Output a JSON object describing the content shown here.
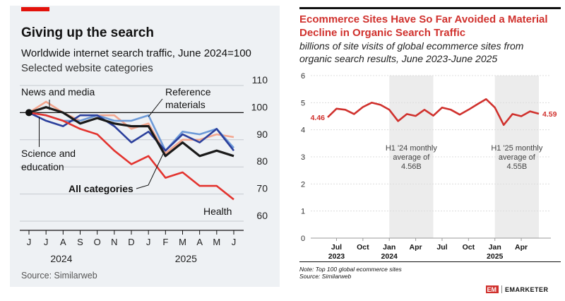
{
  "left": {
    "title": "Giving up the search",
    "subtitle": "Worldwide internet search traffic, June 2024=100",
    "subsubtitle": "Selected website categories",
    "source": "Source: Similarweb",
    "colors": {
      "all": "#1a1a1a",
      "news": "#f3a68f",
      "reference": "#6d9ad8",
      "science": "#2b3f9c",
      "health": "#e3342f",
      "accent": "#e3120b"
    }
  },
  "right": {
    "title_line1": "Ecommerce Sites Have So Far Avoided a Material",
    "title_line2": "Decline in Organic Search Traffic",
    "subtitle_line1": "billions of site visits of global ecommerce sites from",
    "subtitle_line2": "organic search results, June 2023-June 2025",
    "note": "Note: Top 100 global ecommerce sites",
    "source": "Source: Similarweb",
    "brand": "EMARKETER",
    "brand_mark": "EM",
    "colors": {
      "line": "#d0312d",
      "title": "#d0312d",
      "shade": "#ececec"
    }
  },
  "chart_data": [
    {
      "type": "line",
      "title": "Giving up the search",
      "subtitle": "Worldwide internet search traffic, June 2024=100",
      "x": [
        "J",
        "J",
        "A",
        "S",
        "O",
        "N",
        "D",
        "J",
        "F",
        "M",
        "A",
        "M",
        "J"
      ],
      "year_labels": [
        "2024",
        "2025"
      ],
      "ylim": [
        60,
        110
      ],
      "yticks": [
        60,
        70,
        80,
        90,
        100,
        110
      ],
      "baseline": 100,
      "series": [
        {
          "name": "News and media",
          "values": [
            100,
            104,
            100,
            97,
            99,
            99,
            94,
            96,
            85,
            90,
            90,
            92,
            91
          ]
        },
        {
          "name": "Reference materials",
          "values": [
            100,
            99,
            97,
            97,
            99,
            97,
            97,
            99,
            86,
            93,
            92,
            94,
            87
          ]
        },
        {
          "name": "Science and education",
          "values": [
            100,
            97,
            95,
            99,
            99,
            95,
            89,
            93,
            86,
            92,
            89,
            94,
            86
          ]
        },
        {
          "name": "All categories",
          "values": [
            100,
            102,
            100,
            96,
            98,
            96,
            95,
            95,
            84,
            89,
            84,
            86,
            84
          ]
        },
        {
          "name": "Health",
          "values": [
            100,
            99,
            97,
            94,
            92,
            86,
            81,
            84,
            76,
            78,
            73,
            73,
            68
          ]
        }
      ],
      "labels": [
        "News and media",
        "Reference",
        "materials",
        "Science and",
        "education",
        "All categories",
        "Health"
      ]
    },
    {
      "type": "line",
      "title": "Ecommerce Sites Have So Far Avoided a Material Decline in Organic Search Traffic",
      "ylim": [
        0,
        6
      ],
      "yticks": [
        0,
        1,
        2,
        3,
        4,
        5,
        6
      ],
      "x": [
        "Jun 2023",
        "Jul 2023",
        "Aug 2023",
        "Sep 2023",
        "Oct 2023",
        "Nov 2023",
        "Dec 2023",
        "Jan 2024",
        "Feb 2024",
        "Mar 2024",
        "Apr 2024",
        "May 2024",
        "Jun 2024",
        "Jul 2024",
        "Aug 2024",
        "Sep 2024",
        "Oct 2024",
        "Nov 2024",
        "Dec 2024",
        "Jan 2025",
        "Feb 2025",
        "Mar 2025",
        "Apr 2025",
        "May 2025",
        "Jun 2025"
      ],
      "xtick_labels": [
        "Jul",
        "Oct",
        "Jan",
        "Apr",
        "Jul",
        "Oct",
        "Jan",
        "Apr"
      ],
      "year_labels": [
        "2023",
        "2024",
        "2025"
      ],
      "series": [
        {
          "values": [
            4.46,
            4.78,
            4.74,
            4.58,
            4.84,
            5.0,
            4.92,
            4.74,
            4.32,
            4.58,
            4.51,
            4.74,
            4.52,
            4.82,
            4.74,
            4.56,
            4.74,
            4.94,
            5.13,
            4.82,
            4.18,
            4.58,
            4.5,
            4.68,
            4.59
          ]
        }
      ],
      "data_labels": {
        "first": "4.46",
        "last": "4.59"
      },
      "annotations": [
        {
          "lines": [
            "H1 '24 monthly",
            "average of",
            "4.56B"
          ]
        },
        {
          "lines": [
            "H1 '25 monthly",
            "average of",
            "4.55B"
          ]
        }
      ]
    }
  ]
}
